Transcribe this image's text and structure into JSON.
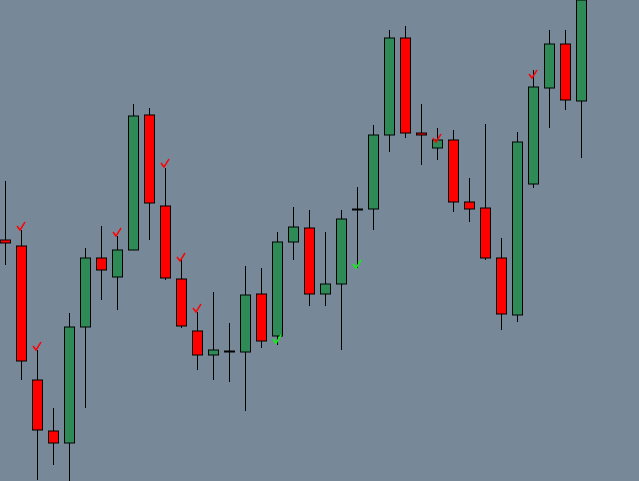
{
  "chart_data": {
    "type": "candlestick",
    "open": [
      241,
      235,
      101,
      50,
      38,
      154,
      223,
      204,
      231,
      366,
      275,
      202,
      150,
      126,
      130,
      129,
      187,
      145,
      239,
      253,
      187,
      197,
      272,
      272,
      346,
      443,
      348,
      333,
      341,
      279,
      273,
      223,
      166,
      297,
      393,
      437,
      380
    ],
    "high": [
      300,
      251,
      131,
      73,
      168,
      233,
      255,
      245,
      377,
      373,
      313,
      223,
      169,
      189,
      158,
      215,
      213,
      249,
      274,
      271,
      249,
      271,
      294,
      356,
      451,
      455,
      377,
      353,
      351,
      303,
      357,
      243,
      349,
      411,
      451,
      451,
      481
    ],
    "low": [
      216,
      101,
      1,
      16,
      0,
      73,
      181,
      171,
      231,
      241,
      201,
      153,
      111,
      101,
      99,
      70,
      133,
      136,
      221,
      175,
      175,
      131,
      213,
      251,
      329,
      343,
      316,
      321,
      269,
      259,
      221,
      151,
      159,
      293,
      353,
      371,
      323
    ],
    "close": [
      238,
      120,
      51,
      38,
      154,
      223,
      211,
      231,
      365,
      278,
      203,
      155,
      126,
      131,
      129,
      186,
      140,
      239,
      254,
      187,
      197,
      262,
      271,
      346,
      443,
      348,
      346,
      341,
      279,
      272,
      223,
      167,
      339,
      394,
      437,
      381,
      481
    ],
    "up_color": "#2e8b57",
    "down_color": "#ff0000",
    "ylim": [
      0,
      481
    ]
  }
}
